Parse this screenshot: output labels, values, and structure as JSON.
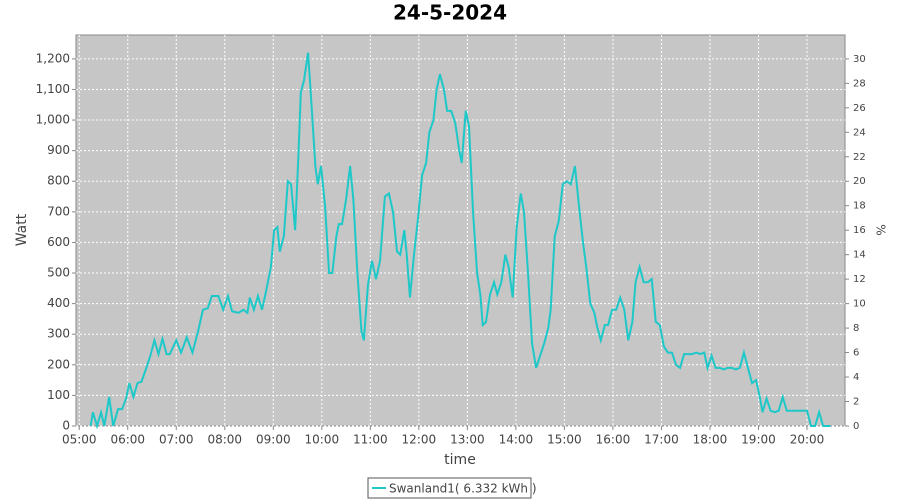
{
  "chart_data": {
    "type": "line",
    "title": "24-5-2024",
    "x_label": "time",
    "y_label": "Watt",
    "y2_label": "%",
    "x": [
      "05:14",
      "05:17",
      "05:22",
      "05:27",
      "05:31",
      "05:37",
      "05:42",
      "05:48",
      "05:53",
      "05:58",
      "06:02",
      "06:07",
      "06:12",
      "06:17",
      "06:23",
      "06:28",
      "06:33",
      "06:38",
      "06:43",
      "06:48",
      "06:52",
      "07:00",
      "07:06",
      "07:13",
      "07:20",
      "07:27",
      "07:33",
      "07:39",
      "07:44",
      "07:52",
      "07:58",
      "08:04",
      "08:09",
      "08:17",
      "08:23",
      "08:28",
      "08:31",
      "08:36",
      "08:41",
      "08:46",
      "08:51",
      "08:57",
      "09:01",
      "09:05",
      "09:08",
      "09:13",
      "09:18",
      "09:22",
      "09:27",
      "09:31",
      "09:34",
      "09:38",
      "09:43",
      "09:47",
      "09:52",
      "09:55",
      "09:59",
      "10:04",
      "10:09",
      "10:13",
      "10:18",
      "10:21",
      "10:25",
      "10:30",
      "10:35",
      "10:39",
      "10:44",
      "10:49",
      "10:52",
      "10:57",
      "11:02",
      "11:07",
      "11:12",
      "11:18",
      "11:23",
      "11:28",
      "11:33",
      "11:37",
      "11:42",
      "11:45",
      "11:49",
      "11:54",
      "11:59",
      "12:04",
      "12:09",
      "12:13",
      "12:18",
      "12:22",
      "12:26",
      "12:31",
      "12:35",
      "12:40",
      "12:45",
      "12:50",
      "12:53",
      "12:58",
      "13:02",
      "13:07",
      "13:12",
      "13:16",
      "13:19",
      "13:23",
      "13:28",
      "13:33",
      "13:37",
      "13:42",
      "13:47",
      "13:51",
      "13:56",
      "14:01",
      "14:06",
      "14:10",
      "14:15",
      "14:20",
      "14:25",
      "14:30",
      "14:35",
      "14:40",
      "14:43",
      "14:48",
      "14:53",
      "14:58",
      "15:03",
      "15:08",
      "15:13",
      "15:18",
      "15:23",
      "15:27",
      "15:32",
      "15:37",
      "15:40",
      "15:45",
      "15:50",
      "15:54",
      "15:59",
      "16:04",
      "16:09",
      "16:14",
      "16:19",
      "16:24",
      "16:28",
      "16:33",
      "16:38",
      "16:43",
      "16:48",
      "16:53",
      "16:58",
      "17:03",
      "17:08",
      "17:13",
      "17:18",
      "17:23",
      "17:28",
      "17:33",
      "17:38",
      "17:43",
      "17:48",
      "17:53",
      "17:57",
      "18:02",
      "18:07",
      "18:12",
      "18:17",
      "18:22",
      "18:27",
      "18:32",
      "18:37",
      "18:42",
      "18:47",
      "18:52",
      "18:57",
      "19:02",
      "19:05",
      "19:10",
      "19:15",
      "19:20",
      "19:25",
      "19:30",
      "19:35",
      "19:40",
      "19:45",
      "19:50",
      "19:55",
      "20:00",
      "20:05",
      "20:10",
      "20:15",
      "20:20",
      "20:25",
      "20:29"
    ],
    "series": [
      {
        "name": "Swanland1( 6.332 kWh )",
        "color": "#1ec8c8",
        "values": [
          0,
          45,
          0,
          45,
          0,
          95,
          0,
          55,
          55,
          90,
          140,
          95,
          140,
          145,
          190,
          230,
          280,
          235,
          285,
          235,
          235,
          280,
          240,
          290,
          240,
          310,
          380,
          385,
          425,
          425,
          380,
          425,
          375,
          370,
          380,
          370,
          420,
          380,
          425,
          380,
          440,
          520,
          640,
          650,
          570,
          620,
          800,
          790,
          640,
          880,
          1090,
          1130,
          1220,
          1060,
          850,
          790,
          850,
          720,
          500,
          500,
          620,
          660,
          660,
          740,
          850,
          740,
          500,
          310,
          280,
          460,
          540,
          480,
          540,
          750,
          760,
          700,
          570,
          560,
          640,
          560,
          420,
          560,
          680,
          820,
          860,
          960,
          1000,
          1100,
          1150,
          1100,
          1030,
          1030,
          990,
          900,
          860,
          1030,
          980,
          700,
          500,
          430,
          330,
          340,
          430,
          470,
          430,
          470,
          560,
          520,
          420,
          650,
          760,
          700,
          500,
          270,
          190,
          230,
          270,
          320,
          380,
          620,
          670,
          790,
          800,
          790,
          850,
          720,
          600,
          520,
          400,
          370,
          330,
          280,
          330,
          330,
          380,
          380,
          420,
          380,
          280,
          340,
          470,
          520,
          470,
          470,
          480,
          340,
          330,
          260,
          240,
          240,
          200,
          190,
          235,
          235,
          235,
          240,
          235,
          240,
          190,
          230,
          190,
          190,
          185,
          190,
          190,
          185,
          190,
          240,
          190,
          140,
          150,
          90,
          45,
          90,
          50,
          45,
          50,
          95,
          50,
          50,
          50,
          50,
          50,
          50,
          0,
          0,
          45,
          0,
          0,
          0
        ]
      }
    ],
    "xlim": [
      "04:56",
      "20:47"
    ],
    "xticks": [
      "05:00",
      "06:00",
      "07:00",
      "08:00",
      "09:00",
      "10:00",
      "11:00",
      "12:00",
      "13:00",
      "14:00",
      "15:00",
      "16:00",
      "17:00",
      "18:00",
      "19:00",
      "20:00"
    ],
    "ylim": [
      0,
      1278
    ],
    "yticks": [
      0,
      100,
      200,
      300,
      400,
      500,
      600,
      700,
      800,
      900,
      {
        "value": 1000,
        "label": "1,000"
      },
      {
        "value": 1100,
        "label": "1,100"
      },
      {
        "value": 1200,
        "label": "1,200"
      }
    ],
    "y2lim": [
      0,
      31.95
    ],
    "y2ticks": [
      0,
      2,
      4,
      6,
      8,
      10,
      12,
      14,
      16,
      18,
      20,
      22,
      24,
      26,
      28,
      30
    ],
    "grid": true,
    "legend": "bottom"
  }
}
